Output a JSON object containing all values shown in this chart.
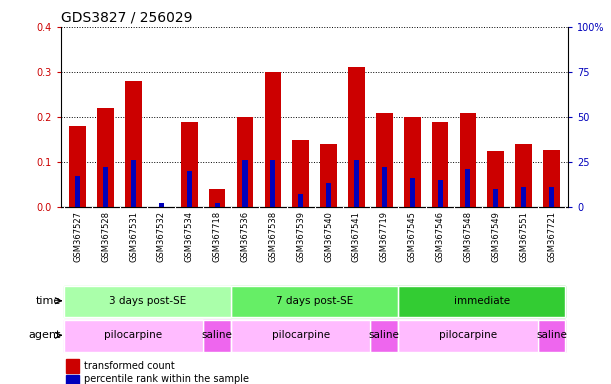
{
  "title": "GDS3827 / 256029",
  "samples": [
    "GSM367527",
    "GSM367528",
    "GSM367531",
    "GSM367532",
    "GSM367534",
    "GSM367718",
    "GSM367536",
    "GSM367538",
    "GSM367539",
    "GSM367540",
    "GSM367541",
    "GSM367719",
    "GSM367545",
    "GSM367546",
    "GSM367548",
    "GSM367549",
    "GSM367551",
    "GSM367721"
  ],
  "red_values": [
    0.18,
    0.22,
    0.28,
    0.0,
    0.19,
    0.04,
    0.2,
    0.3,
    0.15,
    0.14,
    0.31,
    0.21,
    0.2,
    0.19,
    0.21,
    0.125,
    0.14,
    0.128
  ],
  "blue_values": [
    0.07,
    0.09,
    0.105,
    0.01,
    0.08,
    0.01,
    0.105,
    0.105,
    0.03,
    0.055,
    0.105,
    0.09,
    0.065,
    0.06,
    0.085,
    0.04,
    0.045,
    0.045
  ],
  "red_color": "#cc0000",
  "blue_color": "#0000bb",
  "ylim_left": [
    0,
    0.4
  ],
  "ylim_right": [
    0,
    100
  ],
  "yticks_left": [
    0,
    0.1,
    0.2,
    0.3,
    0.4
  ],
  "yticks_right": [
    0,
    25,
    50,
    75,
    100
  ],
  "time_groups": [
    {
      "label": "3 days post-SE",
      "start": 0,
      "end": 6,
      "color": "#aaffaa"
    },
    {
      "label": "7 days post-SE",
      "start": 6,
      "end": 12,
      "color": "#66ee66"
    },
    {
      "label": "immediate",
      "start": 12,
      "end": 18,
      "color": "#33cc33"
    }
  ],
  "agent_groups": [
    {
      "label": "pilocarpine",
      "start": 0,
      "end": 5,
      "color": "#ffbbff"
    },
    {
      "label": "saline",
      "start": 5,
      "end": 6,
      "color": "#ee66ee"
    },
    {
      "label": "pilocarpine",
      "start": 6,
      "end": 11,
      "color": "#ffbbff"
    },
    {
      "label": "saline",
      "start": 11,
      "end": 12,
      "color": "#ee66ee"
    },
    {
      "label": "pilocarpine",
      "start": 12,
      "end": 17,
      "color": "#ffbbff"
    },
    {
      "label": "saline",
      "start": 17,
      "end": 18,
      "color": "#ee66ee"
    }
  ],
  "red_bar_width": 0.6,
  "blue_bar_width": 0.18,
  "legend_labels": [
    "transformed count",
    "percentile rank within the sample"
  ],
  "legend_colors": [
    "#cc0000",
    "#0000bb"
  ],
  "background_color": "#ffffff",
  "tick_label_fontsize": 6,
  "title_fontsize": 10,
  "chart_facecolor": "#ffffff",
  "tickband_color": "#dddddd"
}
